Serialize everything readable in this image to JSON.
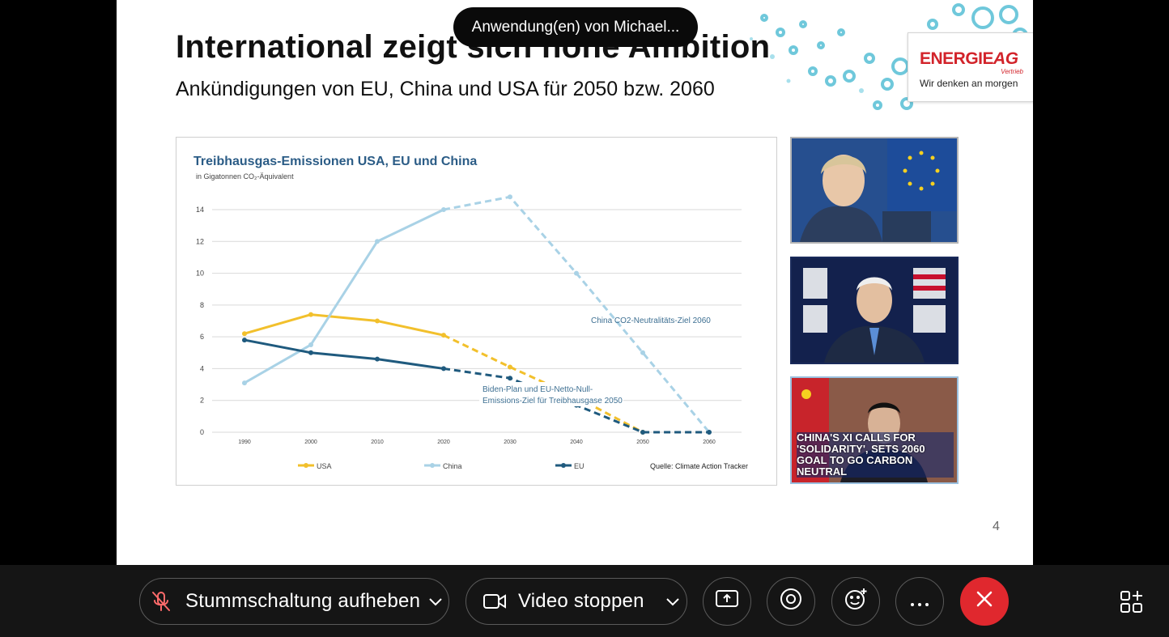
{
  "sharer_indicator": "Anwendung(en) von Michael...",
  "slide": {
    "title": "International zeigt sich hohe Ambition",
    "subtitle": "Ankündigungen von EU, China und USA für 2050 bzw. 2060",
    "page_number": "4",
    "logo": {
      "brand_main": "ENERGIE",
      "brand_suffix": "AG",
      "brand_sub": "Vertrieb",
      "tagline": "Wir denken an morgen"
    },
    "photos": [
      {
        "name": "photo-eu-leader"
      },
      {
        "name": "photo-biden-harris"
      },
      {
        "name": "photo-xi",
        "caption": "CHINA'S XI CALLS FOR 'SOLIDARITY', SETS 2060 GOAL TO GO CARBON NEUTRAL"
      }
    ]
  },
  "chart_data": {
    "type": "line",
    "title": "Treibhausgas-Emissionen USA, EU und China",
    "subtitle": "in Gigatonnen CO₂-Äquivalent",
    "x": [
      1990,
      2000,
      2010,
      2020,
      2030,
      2040,
      2050,
      2060
    ],
    "x_tick_labels": [
      "1990",
      "2000",
      "2010",
      "2020",
      "2030",
      "2040",
      "2050",
      "2060"
    ],
    "ylim": [
      0,
      14
    ],
    "y_ticks": [
      0,
      2,
      4,
      6,
      8,
      10,
      12,
      14
    ],
    "grid": true,
    "legend_position": "bottom",
    "series": [
      {
        "name": "USA",
        "color": "#f2c02c",
        "historical": [
          [
            1990,
            6.2
          ],
          [
            2000,
            7.4
          ],
          [
            2010,
            7.0
          ],
          [
            2020,
            6.1
          ]
        ],
        "projection": [
          [
            2020,
            6.1
          ],
          [
            2030,
            4.1
          ],
          [
            2040,
            2.2
          ],
          [
            2050,
            0
          ]
        ]
      },
      {
        "name": "China",
        "color": "#a9d2e6",
        "historical": [
          [
            1990,
            3.1
          ],
          [
            2000,
            5.5
          ],
          [
            2010,
            12.0
          ],
          [
            2020,
            14.0
          ]
        ],
        "projection": [
          [
            2020,
            14.0
          ],
          [
            2030,
            14.8
          ],
          [
            2040,
            10.0
          ],
          [
            2050,
            5.0
          ],
          [
            2060,
            0
          ]
        ]
      },
      {
        "name": "EU",
        "color": "#1f5a7e",
        "historical": [
          [
            1990,
            5.8
          ],
          [
            2000,
            5.0
          ],
          [
            2010,
            4.6
          ],
          [
            2020,
            4.0
          ]
        ],
        "projection": [
          [
            2020,
            4.0
          ],
          [
            2030,
            3.4
          ],
          [
            2040,
            1.7
          ],
          [
            2050,
            0
          ],
          [
            2060,
            0
          ]
        ]
      }
    ],
    "annotations": [
      {
        "text": "China CO2-Neutralitäts-Ziel 2060",
        "series": "China"
      },
      {
        "text": "Biden-Plan und EU-Netto-Null-",
        "series": "EU"
      },
      {
        "text": "Emissions-Ziel für Treibhausgase 2050",
        "series": "EU"
      }
    ],
    "source": "Quelle: Climate Action Tracker"
  },
  "toolbar": {
    "mute_label": "Stummschaltung aufheben",
    "video_label": "Video stoppen",
    "icons": {
      "mute": "microphone-muted-icon",
      "video": "video-camera-icon",
      "share": "share-screen-icon",
      "record": "record-icon",
      "reactions": "emoji-reaction-icon",
      "more": "more-options-icon",
      "leave": "close-icon",
      "apps": "apps-grid-icon"
    },
    "leave_color": "#e0282e"
  }
}
